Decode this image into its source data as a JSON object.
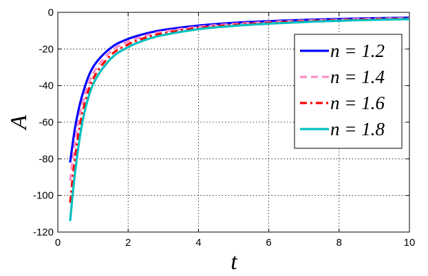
{
  "chart_data": {
    "type": "line",
    "title": "",
    "xlabel": "t",
    "ylabel": "A",
    "xlim": [
      0,
      10
    ],
    "ylim": [
      -120,
      0
    ],
    "xticks": [
      0,
      2,
      4,
      6,
      8,
      10
    ],
    "yticks": [
      -120,
      -100,
      -80,
      -60,
      -40,
      -20,
      0
    ],
    "xtick_labels": [
      "0",
      "2",
      "4",
      "6",
      "8",
      "10"
    ],
    "ytick_labels": [
      "-120",
      "-100",
      "-80",
      "-60",
      "-40",
      "-20",
      "0"
    ],
    "grid": true,
    "legend_position": "top-right",
    "x": [
      0.35,
      0.5,
      0.7,
      1.0,
      1.5,
      2.0,
      2.5,
      3.0,
      4.0,
      5.0,
      6.0,
      7.0,
      8.0,
      9.0,
      10.0
    ],
    "series": [
      {
        "name": "n = 1.2",
        "color": "#0000ff",
        "dash": "solid",
        "values": [
          -82,
          -62,
          -45,
          -30,
          -19.5,
          -14.5,
          -11.6,
          -9.6,
          -7.2,
          -5.7,
          -4.8,
          -4.1,
          -3.6,
          -3.2,
          -2.9
        ]
      },
      {
        "name": "n = 1.4",
        "color": "#ff8cc6",
        "dash": "dashed",
        "values": [
          -92,
          -70,
          -50,
          -33.5,
          -21.5,
          -16,
          -12.7,
          -10.5,
          -7.9,
          -6.3,
          -5.3,
          -4.5,
          -4.0,
          -3.5,
          -3.2
        ]
      },
      {
        "name": "n = 1.6",
        "color": "#ff0000",
        "dash": "dashdot",
        "values": [
          -104,
          -78,
          -55,
          -36.5,
          -23.5,
          -17.5,
          -13.8,
          -11.4,
          -8.5,
          -6.8,
          -5.7,
          -4.9,
          -4.3,
          -3.8,
          -3.4
        ]
      },
      {
        "name": "n = 1.8",
        "color": "#00bfbf",
        "dash": "solid",
        "values": [
          -114,
          -86,
          -60,
          -39.5,
          -25.5,
          -19,
          -15,
          -12.4,
          -9.2,
          -7.4,
          -6.2,
          -5.3,
          -4.6,
          -4.1,
          -3.7
        ]
      }
    ]
  }
}
